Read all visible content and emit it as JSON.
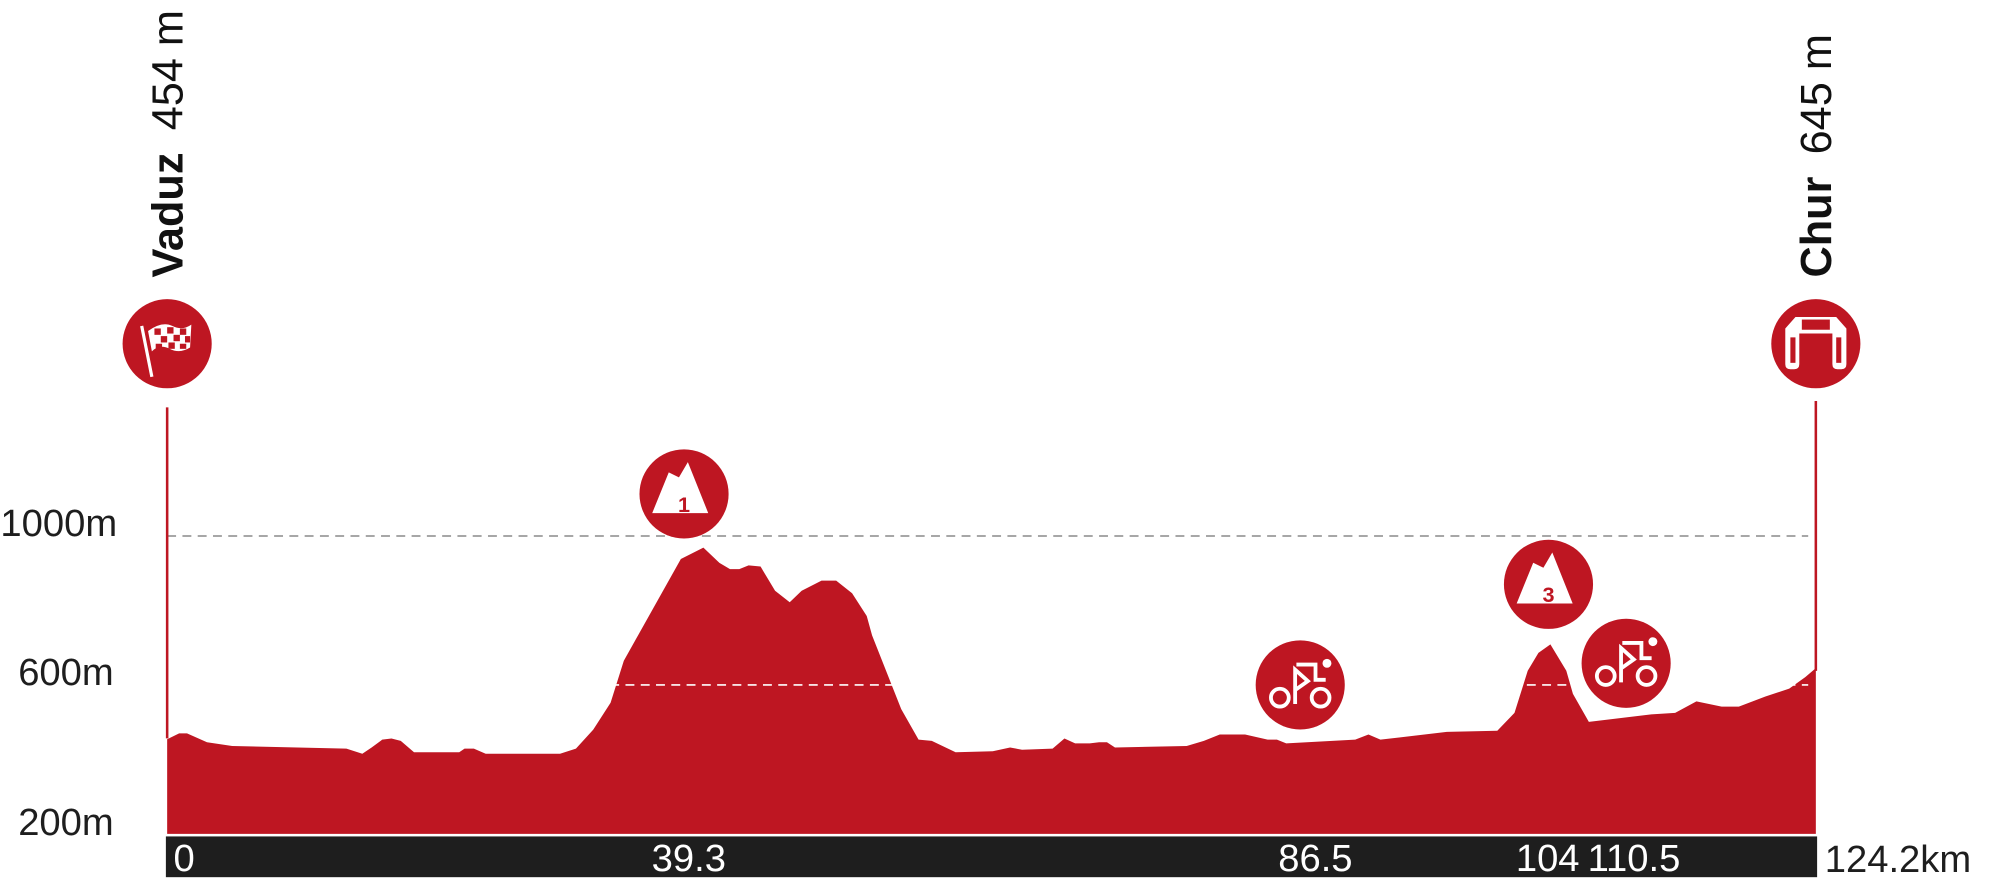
{
  "chart_data": {
    "type": "area",
    "title": "",
    "xlabel": "",
    "ylabel": "",
    "x_unit": "km",
    "y_unit": "m",
    "xlim": [
      0,
      124.2
    ],
    "ylim": [
      200,
      1150
    ],
    "grid": {
      "dashed_altitudes": [
        600,
        1000
      ]
    },
    "fill_color": "#be1622",
    "axis_bar_color": "#1e1e1e",
    "yticks": [
      {
        "value": 200,
        "label": "200m"
      },
      {
        "value": 600,
        "label": "600m"
      },
      {
        "value": 1000,
        "label": "1000m"
      }
    ],
    "xticks": [
      {
        "value": 0,
        "label": "0"
      },
      {
        "value": 39.3,
        "label": "39.3"
      },
      {
        "value": 86.5,
        "label": "86.5"
      },
      {
        "value": 104,
        "label": "104"
      },
      {
        "value": 110.5,
        "label": "110.5"
      }
    ],
    "end_label": "124.2km",
    "start": {
      "name": "Vaduz",
      "altitude": "454 m",
      "icon": "checkered-flag-icon"
    },
    "finish": {
      "name": "Chur",
      "altitude": "645 m",
      "icon": "finish-arch-icon"
    },
    "markers": [
      {
        "type": "kom",
        "category": "1",
        "km": 39.3,
        "icon": "mountain-icon"
      },
      {
        "type": "sprint",
        "km": 86.5,
        "icon": "cyclist-icon"
      },
      {
        "type": "kom",
        "category": "3",
        "km": 104,
        "icon": "mountain-icon"
      },
      {
        "type": "sprint",
        "km": 110.5,
        "icon": "cyclist-icon"
      }
    ],
    "x": [
      0,
      0.9,
      1.5,
      3.0,
      4.9,
      13.5,
      14.7,
      15.4,
      16.2,
      16.9,
      17.6,
      18.6,
      22.0,
      22.4,
      23.1,
      24.0,
      29.6,
      30.8,
      32.1,
      33.4,
      34.4,
      38.7,
      40.4,
      41.6,
      42.4,
      43.1,
      43.8,
      44.7,
      45.8,
      46.9,
      47.8,
      49.3,
      50.4,
      51.6,
      52.7,
      53.1,
      55.3,
      56.6,
      57.6,
      59.4,
      62.2,
      63.5,
      64.4,
      66.7,
      67.6,
      68.4,
      69.5,
      70.2,
      70.8,
      71.4,
      76.8,
      78.1,
      79.3,
      81.2,
      82.9,
      83.6,
      84.3,
      89.5,
      90.5,
      91.4,
      96.4,
      100.2,
      101.5,
      102.5,
      103.3,
      104.2,
      105.4,
      105.9,
      107.1,
      111.8,
      113.6,
      115.2,
      117.1,
      118.4,
      120.4,
      122.2,
      123.4,
      124.2
    ],
    "y": [
      454,
      470,
      470,
      446,
      436,
      429,
      415,
      432,
      453,
      456,
      450,
      419,
      419,
      429,
      429,
      415,
      415,
      429,
      480,
      552,
      665,
      938,
      969,
      928,
      911,
      911,
      921,
      918,
      853,
      822,
      853,
      880,
      880,
      846,
      785,
      733,
      535,
      453,
      450,
      419,
      422,
      432,
      426,
      429,
      456,
      443,
      443,
      446,
      446,
      432,
      436,
      450,
      467,
      467,
      453,
      453,
      443,
      453,
      467,
      453,
      474,
      477,
      525,
      638,
      686,
      709,
      638,
      576,
      501,
      521,
      525,
      556,
      542,
      542,
      569,
      590,
      621,
      645
    ]
  }
}
